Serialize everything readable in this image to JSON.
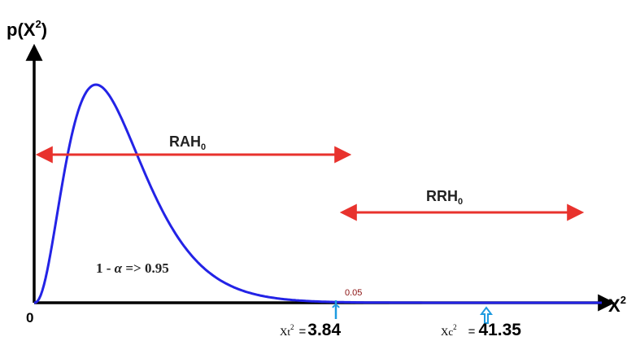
{
  "axes": {
    "y_label": "p(X",
    "y_label_sup": "2",
    "y_label_close": ")",
    "x_label": "X",
    "x_label_sup": "2",
    "origin_label": "0"
  },
  "regions": {
    "acceptance": {
      "label": "RAH",
      "subscript": "0",
      "color": "#e8322d"
    },
    "rejection": {
      "label": "RRH",
      "subscript": "0",
      "color": "#e8322d"
    }
  },
  "confidence": {
    "prefix": "1 - ",
    "alpha": "α",
    "suffix": " => 0.95"
  },
  "tail_area": {
    "label": "0.05",
    "fill_color": "#e0121a"
  },
  "critical_values": {
    "table": {
      "name": "Xt",
      "sup": "2",
      "eq": "=",
      "value": "3.84",
      "marker_color": "#1e9be0"
    },
    "calculated": {
      "name": "Xc",
      "sup": "2",
      "eq": "=",
      "value": "41.35",
      "marker_color": "#1e9be0"
    }
  },
  "curve": {
    "color": "#2323e6",
    "type": "chi-square density"
  }
}
